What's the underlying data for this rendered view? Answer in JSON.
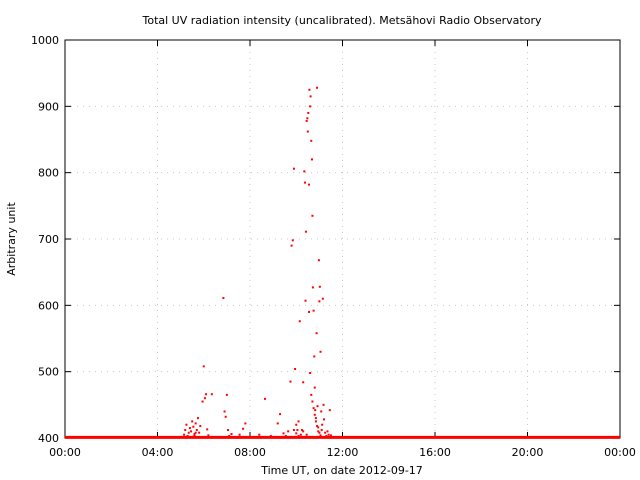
{
  "chart_data": {
    "type": "scatter",
    "title": "Total UV radiation intensity (uncalibrated). Metsähovi Radio Observatory",
    "xlabel": "Time UT, on date 2012-09-17",
    "ylabel": "Arbitrary unit",
    "xlim": [
      0,
      24
    ],
    "ylim": [
      400,
      1000
    ],
    "x_ticks": [
      0,
      4,
      8,
      12,
      16,
      20,
      24
    ],
    "x_tick_labels": [
      "00:00",
      "04:00",
      "08:00",
      "12:00",
      "16:00",
      "20:00",
      "00:00"
    ],
    "y_ticks": [
      400,
      500,
      600,
      700,
      800,
      900,
      1000
    ],
    "y_tick_labels": [
      "400",
      "500",
      "600",
      "700",
      "800",
      "900",
      "1000"
    ],
    "grid": true,
    "series_color": "#ff0000",
    "baseline": {
      "value": 401,
      "x_range": [
        0,
        24
      ]
    },
    "points": [
      [
        5.15,
        405
      ],
      [
        5.2,
        412
      ],
      [
        5.25,
        420
      ],
      [
        5.3,
        403
      ],
      [
        5.35,
        408
      ],
      [
        5.4,
        415
      ],
      [
        5.45,
        410
      ],
      [
        5.5,
        425
      ],
      [
        5.55,
        417
      ],
      [
        5.6,
        406
      ],
      [
        5.65,
        422
      ],
      [
        5.7,
        412
      ],
      [
        5.75,
        430
      ],
      [
        5.8,
        408
      ],
      [
        5.85,
        418
      ],
      [
        5.95,
        455
      ],
      [
        6.0,
        508
      ],
      [
        6.05,
        460
      ],
      [
        6.1,
        466
      ],
      [
        6.15,
        413
      ],
      [
        6.2,
        404
      ],
      [
        6.35,
        466
      ],
      [
        6.85,
        611
      ],
      [
        6.9,
        440
      ],
      [
        6.95,
        432
      ],
      [
        7.0,
        465
      ],
      [
        7.05,
        412
      ],
      [
        7.1,
        403
      ],
      [
        7.2,
        406
      ],
      [
        7.55,
        405
      ],
      [
        7.7,
        414
      ],
      [
        7.8,
        422
      ],
      [
        8.4,
        405
      ],
      [
        8.65,
        459
      ],
      [
        8.9,
        403
      ],
      [
        9.2,
        422
      ],
      [
        9.3,
        436
      ],
      [
        9.45,
        407
      ],
      [
        9.55,
        403
      ],
      [
        9.65,
        410
      ],
      [
        9.75,
        485
      ],
      [
        9.8,
        690
      ],
      [
        9.85,
        698
      ],
      [
        9.9,
        806
      ],
      [
        9.95,
        504
      ],
      [
        10.0,
        420
      ],
      [
        10.05,
        412
      ],
      [
        10.1,
        425
      ],
      [
        10.15,
        576
      ],
      [
        10.2,
        405
      ],
      [
        10.25,
        412
      ],
      [
        10.3,
        484
      ],
      [
        10.35,
        802
      ],
      [
        10.38,
        785
      ],
      [
        10.4,
        607
      ],
      [
        10.42,
        711
      ],
      [
        10.45,
        878
      ],
      [
        10.48,
        882
      ],
      [
        10.5,
        862
      ],
      [
        10.52,
        890
      ],
      [
        10.55,
        782
      ],
      [
        10.57,
        925
      ],
      [
        10.6,
        900
      ],
      [
        10.62,
        915
      ],
      [
        10.65,
        848
      ],
      [
        10.68,
        820
      ],
      [
        10.7,
        735
      ],
      [
        10.72,
        627
      ],
      [
        10.75,
        592
      ],
      [
        10.78,
        523
      ],
      [
        10.8,
        476
      ],
      [
        10.82,
        442
      ],
      [
        10.85,
        430
      ],
      [
        10.88,
        558
      ],
      [
        10.9,
        928
      ],
      [
        10.92,
        448
      ],
      [
        10.95,
        416
      ],
      [
        10.98,
        668
      ],
      [
        11.0,
        606
      ],
      [
        11.02,
        628
      ],
      [
        11.05,
        530
      ],
      [
        11.08,
        440
      ],
      [
        11.1,
        412
      ],
      [
        11.12,
        420
      ],
      [
        11.15,
        610
      ],
      [
        11.18,
        450
      ],
      [
        11.2,
        428
      ],
      [
        11.25,
        408
      ],
      [
        11.3,
        403
      ],
      [
        11.35,
        410
      ],
      [
        11.4,
        405
      ],
      [
        11.45,
        442
      ],
      [
        11.5,
        404
      ],
      [
        10.55,
        590
      ],
      [
        10.6,
        498
      ],
      [
        10.65,
        465
      ],
      [
        10.7,
        455
      ],
      [
        10.75,
        445
      ],
      [
        10.8,
        435
      ],
      [
        10.85,
        425
      ],
      [
        10.9,
        418
      ],
      [
        10.95,
        410
      ],
      [
        11.0,
        408
      ],
      [
        11.05,
        404
      ],
      [
        9.9,
        412
      ],
      [
        10.0,
        407
      ],
      [
        10.1,
        403
      ],
      [
        10.3,
        410
      ],
      [
        10.45,
        405
      ],
      [
        5.55,
        402
      ],
      [
        5.6,
        404
      ],
      [
        5.65,
        408
      ]
    ]
  }
}
